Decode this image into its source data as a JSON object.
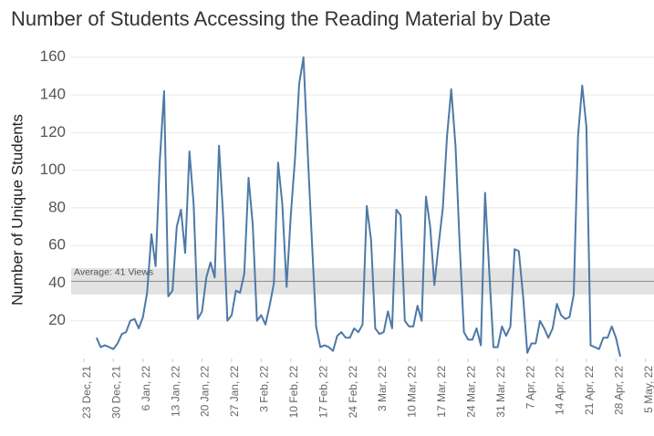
{
  "chart_data": {
    "type": "line",
    "title": "Number of Students Accessing the Reading Material by Date",
    "y_label": "Number of Unique Students",
    "x": [
      "2021-12-26",
      "2021-12-27",
      "2021-12-28",
      "2021-12-29",
      "2021-12-30",
      "2021-12-31",
      "2022-01-01",
      "2022-01-02",
      "2022-01-03",
      "2022-01-04",
      "2022-01-05",
      "2022-01-06",
      "2022-01-07",
      "2022-01-08",
      "2022-01-09",
      "2022-01-10",
      "2022-01-11",
      "2022-01-12",
      "2022-01-13",
      "2022-01-14",
      "2022-01-15",
      "2022-01-16",
      "2022-01-17",
      "2022-01-18",
      "2022-01-19",
      "2022-01-20",
      "2022-01-21",
      "2022-01-22",
      "2022-01-23",
      "2022-01-24",
      "2022-01-25",
      "2022-01-26",
      "2022-01-27",
      "2022-01-28",
      "2022-01-29",
      "2022-01-30",
      "2022-01-31",
      "2022-02-01",
      "2022-02-02",
      "2022-02-03",
      "2022-02-04",
      "2022-02-05",
      "2022-02-06",
      "2022-02-07",
      "2022-02-08",
      "2022-02-09",
      "2022-02-10",
      "2022-02-11",
      "2022-02-12",
      "2022-02-13",
      "2022-02-14",
      "2022-02-15",
      "2022-02-16",
      "2022-02-17",
      "2022-02-18",
      "2022-02-19",
      "2022-02-20",
      "2022-02-21",
      "2022-02-22",
      "2022-02-23",
      "2022-02-24",
      "2022-02-25",
      "2022-02-26",
      "2022-02-27",
      "2022-02-28",
      "2022-03-01",
      "2022-03-02",
      "2022-03-03",
      "2022-03-04",
      "2022-03-05",
      "2022-03-06",
      "2022-03-07",
      "2022-03-08",
      "2022-03-09",
      "2022-03-10",
      "2022-03-11",
      "2022-03-12",
      "2022-03-13",
      "2022-03-14",
      "2022-03-15",
      "2022-03-16",
      "2022-03-17",
      "2022-03-18",
      "2022-03-19",
      "2022-03-20",
      "2022-03-21",
      "2022-03-22",
      "2022-03-23",
      "2022-03-24",
      "2022-03-25",
      "2022-03-26",
      "2022-03-27",
      "2022-03-28",
      "2022-03-29",
      "2022-03-30",
      "2022-03-31",
      "2022-04-01",
      "2022-04-02",
      "2022-04-03",
      "2022-04-04",
      "2022-04-05",
      "2022-04-06",
      "2022-04-07",
      "2022-04-08",
      "2022-04-09",
      "2022-04-10",
      "2022-04-11",
      "2022-04-12",
      "2022-04-13",
      "2022-04-14",
      "2022-04-15",
      "2022-04-16",
      "2022-04-17",
      "2022-04-18",
      "2022-04-19",
      "2022-04-20",
      "2022-04-21",
      "2022-04-22",
      "2022-04-23",
      "2022-04-24",
      "2022-04-25",
      "2022-04-26",
      "2022-04-27",
      "2022-04-28",
      "2022-04-29"
    ],
    "series": [
      {
        "name": "Unique Students",
        "color": "#4e79a7",
        "values": [
          11,
          6,
          7,
          6,
          5,
          8,
          13,
          14,
          20,
          21,
          16,
          22,
          35,
          66,
          49,
          105,
          142,
          33,
          36,
          70,
          79,
          56,
          110,
          82,
          21,
          25,
          43,
          51,
          43,
          113,
          75,
          20,
          23,
          36,
          35,
          45,
          96,
          71,
          20,
          23,
          18,
          28,
          40,
          104,
          82,
          38,
          76,
          106,
          146,
          160,
          110,
          63,
          17,
          6,
          7,
          6,
          4,
          12,
          14,
          11,
          11,
          16,
          14,
          18,
          81,
          63,
          16,
          13,
          14,
          25,
          16,
          79,
          76,
          20,
          17,
          17,
          28,
          20,
          86,
          70,
          39,
          60,
          80,
          118,
          143,
          113,
          60,
          14,
          10,
          10,
          16,
          7,
          88,
          46,
          6,
          6,
          17,
          12,
          17,
          58,
          57,
          33,
          3,
          8,
          8,
          20,
          16,
          11,
          16,
          29,
          23,
          21,
          22,
          34,
          118,
          145,
          123,
          7,
          6,
          5,
          11,
          11,
          17,
          11,
          1
        ]
      }
    ],
    "xlim": [
      "2021-12-20",
      "2022-05-07"
    ],
    "xticks": [
      {
        "value": "2021-12-23",
        "label": "23 Dec, 21"
      },
      {
        "value": "2021-12-30",
        "label": "30 Dec, 21"
      },
      {
        "value": "2022-01-06",
        "label": "6 Jan, 22"
      },
      {
        "value": "2022-01-13",
        "label": "13 Jan, 22"
      },
      {
        "value": "2022-01-20",
        "label": "20 Jan, 22"
      },
      {
        "value": "2022-01-27",
        "label": "27 Jan, 22"
      },
      {
        "value": "2022-02-03",
        "label": "3 Feb, 22"
      },
      {
        "value": "2022-02-10",
        "label": "10 Feb, 22"
      },
      {
        "value": "2022-02-17",
        "label": "17 Feb, 22"
      },
      {
        "value": "2022-02-24",
        "label": "24 Feb, 22"
      },
      {
        "value": "2022-03-03",
        "label": "3 Mar, 22"
      },
      {
        "value": "2022-03-10",
        "label": "10 Mar, 22"
      },
      {
        "value": "2022-03-17",
        "label": "17 Mar, 22"
      },
      {
        "value": "2022-03-24",
        "label": "24 Mar, 22"
      },
      {
        "value": "2022-03-31",
        "label": "31 Mar, 22"
      },
      {
        "value": "2022-04-07",
        "label": "7 Apr, 22"
      },
      {
        "value": "2022-04-14",
        "label": "14 Apr, 22"
      },
      {
        "value": "2022-04-21",
        "label": "21 Apr, 22"
      },
      {
        "value": "2022-04-28",
        "label": "28 Apr, 22"
      },
      {
        "value": "2022-05-05",
        "label": "5 May, 22"
      }
    ],
    "ylim": [
      0,
      165
    ],
    "yticks": [
      20,
      40,
      60,
      80,
      100,
      120,
      140,
      160
    ],
    "grid": true,
    "reference_line": {
      "value": 41,
      "label": "Average: 41 Views",
      "band": [
        34,
        48
      ]
    }
  }
}
